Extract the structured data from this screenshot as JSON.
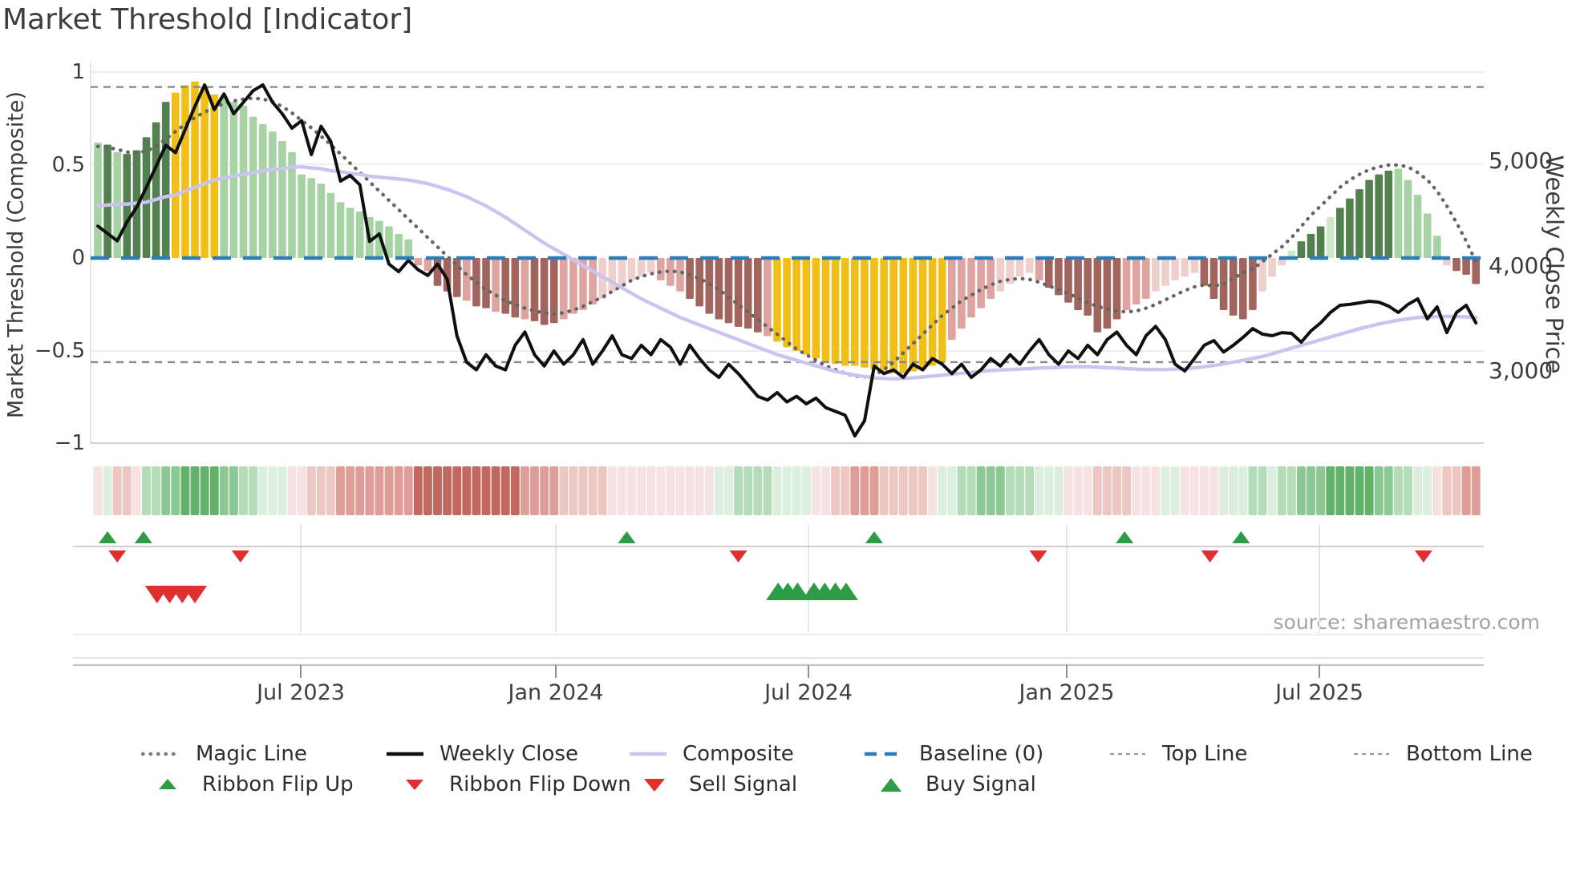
{
  "title": "Market Threshold [Indicator]",
  "source": "source: sharemaestro.com",
  "axes": {
    "left_label": "Market Threshold (Composite)",
    "right_label": "Weekly Close Price",
    "left_ticks": [
      "1",
      "0.5",
      "0",
      "−0.5",
      "−1"
    ],
    "right_ticks": [
      "5,000",
      "4,000",
      "3,000"
    ],
    "x_ticks": [
      "Jul 2023",
      "Jan 2024",
      "Jul 2024",
      "Jan 2025",
      "Jul 2025"
    ]
  },
  "legend": {
    "row1": [
      {
        "label": "Magic Line",
        "swatch": "dotted-gray-line"
      },
      {
        "label": "Weekly Close",
        "swatch": "solid-black-line"
      },
      {
        "label": "Composite",
        "swatch": "solid-lavender-line"
      },
      {
        "label": "Baseline (0)",
        "swatch": "dashed-blue-line"
      },
      {
        "label": "Top Line",
        "swatch": "fine-dashed-gray-line"
      },
      {
        "label": "Bottom Line",
        "swatch": "fine-dashed-gray-line"
      }
    ],
    "row2": [
      {
        "label": "Ribbon Flip Up",
        "swatch": "triangle-up-green"
      },
      {
        "label": "Ribbon Flip Down",
        "swatch": "triangle-down-red"
      },
      {
        "label": "Sell Signal",
        "swatch": "triangle-down-red-large"
      },
      {
        "label": "Buy Signal",
        "swatch": "triangle-up-green-large"
      }
    ]
  },
  "colors": {
    "bar_palette": {
      "dg": "#53804f",
      "lg": "#a7d2a3",
      "pg": "#cfe7cb",
      "y": "#f2bf18",
      "lp": "#eecfcb",
      "pk": "#dfa49f",
      "dr": "#a2655e"
    },
    "ribbon_palette": {
      "g1": "#dceedd",
      "g2": "#b5dcb8",
      "g3": "#8cc893",
      "g4": "#62b269",
      "r1": "#f6e3e1",
      "r2": "#eec7c3",
      "r3": "#de9e97",
      "r4": "#c2685e"
    },
    "weekly_close": "#0f0f0f",
    "composite": "#cac4ef",
    "magic": "#646464",
    "baseline": "#2c7cba",
    "top_bottom_lines": "#8a8a8a",
    "signal_green": "#2e9c47",
    "signal_red": "#e02f2f",
    "grid": "#e9ecf2"
  },
  "chart_data": {
    "type": "bar",
    "subtype": "combo: weekly composite bars + overlay lines + signal ribbon",
    "title": "Market Threshold [Indicator]",
    "xlabel": "",
    "ylabel_left": "Market Threshold (Composite)",
    "ylabel_right": "Weekly Close Price",
    "left_ylim": [
      -1,
      1
    ],
    "left_tick_values": [
      1,
      0.5,
      0,
      -0.5,
      -1
    ],
    "right_price_ticks": [
      5000,
      4000,
      3000
    ],
    "x_tick_labels": [
      "Jul 2023",
      "Jan 2024",
      "Jul 2024",
      "Jan 2025",
      "Jul 2025"
    ],
    "grid": "horizontal-light",
    "legend_position": "bottom",
    "weeks": 143,
    "baseline_value": 0,
    "top_line_value": 0.92,
    "bottom_line_value": -0.56,
    "bars": {
      "name": "Composite threshold bars",
      "values": [
        0.62,
        0.61,
        0.57,
        0.56,
        0.58,
        0.65,
        0.73,
        0.84,
        0.89,
        0.93,
        0.95,
        0.92,
        0.88,
        0.87,
        0.84,
        0.82,
        0.76,
        0.72,
        0.68,
        0.63,
        0.57,
        0.45,
        0.43,
        0.4,
        0.35,
        0.3,
        0.27,
        0.25,
        0.22,
        0.2,
        0.17,
        0.13,
        0.1,
        -0.04,
        -0.07,
        -0.15,
        -0.18,
        -0.21,
        -0.23,
        -0.26,
        -0.27,
        -0.29,
        -0.3,
        -0.32,
        -0.33,
        -0.34,
        -0.36,
        -0.35,
        -0.33,
        -0.3,
        -0.28,
        -0.25,
        -0.22,
        -0.18,
        -0.15,
        -0.12,
        -0.1,
        -0.08,
        -0.12,
        -0.15,
        -0.18,
        -0.22,
        -0.26,
        -0.3,
        -0.33,
        -0.35,
        -0.37,
        -0.38,
        -0.4,
        -0.42,
        -0.45,
        -0.48,
        -0.5,
        -0.52,
        -0.54,
        -0.56,
        -0.57,
        -0.58,
        -0.58,
        -0.59,
        -0.6,
        -0.61,
        -0.62,
        -0.62,
        -0.61,
        -0.6,
        -0.58,
        -0.56,
        -0.44,
        -0.38,
        -0.32,
        -0.27,
        -0.22,
        -0.18,
        -0.14,
        -0.1,
        -0.08,
        -0.12,
        -0.16,
        -0.2,
        -0.24,
        -0.28,
        -0.31,
        -0.4,
        -0.38,
        -0.33,
        -0.28,
        -0.25,
        -0.22,
        -0.18,
        -0.15,
        -0.12,
        -0.1,
        -0.08,
        -0.15,
        -0.22,
        -0.28,
        -0.31,
        -0.33,
        -0.28,
        -0.18,
        -0.1,
        -0.04,
        0.04,
        0.09,
        0.13,
        0.17,
        0.22,
        0.27,
        0.32,
        0.37,
        0.42,
        0.45,
        0.47,
        0.48,
        0.42,
        0.34,
        0.24,
        0.12,
        -0.04,
        -0.07,
        -0.09,
        -0.14
      ],
      "color_keys": [
        "lg",
        "dg",
        "lg",
        "dg",
        "dg",
        "dg",
        "dg",
        "dg",
        "y",
        "y",
        "y",
        "y",
        "y",
        "lg",
        "lg",
        "lg",
        "lg",
        "lg",
        "lg",
        "lg",
        "lg",
        "lg",
        "lg",
        "lg",
        "lg",
        "lg",
        "lg",
        "lg",
        "lg",
        "lg",
        "lg",
        "lg",
        "lg",
        "pk",
        "pk",
        "dr",
        "dr",
        "dr",
        "pk",
        "dr",
        "dr",
        "pk",
        "dr",
        "dr",
        "pk",
        "dr",
        "dr",
        "dr",
        "pk",
        "pk",
        "pk",
        "pk",
        "lp",
        "lp",
        "lp",
        "lp",
        "lp",
        "lp",
        "pk",
        "pk",
        "pk",
        "dr",
        "dr",
        "dr",
        "dr",
        "dr",
        "dr",
        "dr",
        "dr",
        "pk",
        "y",
        "y",
        "y",
        "y",
        "y",
        "y",
        "y",
        "y",
        "y",
        "y",
        "y",
        "y",
        "y",
        "y",
        "y",
        "y",
        "y",
        "y",
        "pk",
        "pk",
        "pk",
        "pk",
        "pk",
        "lp",
        "lp",
        "lp",
        "lp",
        "pk",
        "dr",
        "dr",
        "dr",
        "dr",
        "dr",
        "dr",
        "dr",
        "dr",
        "pk",
        "pk",
        "pk",
        "lp",
        "lp",
        "lp",
        "lp",
        "lp",
        "dr",
        "dr",
        "dr",
        "dr",
        "dr",
        "dr",
        "lp",
        "lp",
        "lp",
        "pg",
        "dg",
        "dg",
        "dg",
        "pg",
        "dg",
        "dg",
        "dg",
        "dg",
        "dg",
        "dg",
        "lg",
        "lg",
        "lg",
        "lg",
        "lg",
        "lp",
        "dr",
        "dr",
        "dr"
      ]
    },
    "lines": {
      "weekly_close_price": [
        4380,
        4310,
        4240,
        4420,
        4560,
        4750,
        4950,
        5150,
        5080,
        5300,
        5520,
        5726,
        5490,
        5640,
        5450,
        5560,
        5670,
        5726,
        5560,
        5450,
        5313,
        5385,
        5061,
        5331,
        5187,
        4809,
        4863,
        4773,
        4234,
        4306,
        4018,
        3946,
        4054,
        3964,
        3910,
        4018,
        3874,
        3335,
        3083,
        3011,
        3155,
        3047,
        3011,
        3245,
        3371,
        3155,
        3047,
        3191,
        3065,
        3155,
        3299,
        3065,
        3191,
        3335,
        3155,
        3119,
        3245,
        3155,
        3299,
        3227,
        3065,
        3245,
        3119,
        3011,
        2939,
        3065,
        2975,
        2867,
        2759,
        2723,
        2795,
        2705,
        2759,
        2687,
        2741,
        2651,
        2615,
        2579,
        2382,
        2525,
        3047,
        2975,
        3011,
        2939,
        3065,
        3011,
        3119,
        3065,
        2975,
        3065,
        2939,
        3011,
        3119,
        3047,
        3155,
        3065,
        3191,
        3299,
        3155,
        3065,
        3191,
        3119,
        3245,
        3155,
        3299,
        3371,
        3245,
        3155,
        3335,
        3425,
        3299,
        3065,
        3000,
        3120,
        3245,
        3290,
        3180,
        3245,
        3320,
        3404,
        3351,
        3336,
        3366,
        3359,
        3275,
        3382,
        3458,
        3557,
        3626,
        3634,
        3649,
        3664,
        3656,
        3618,
        3557,
        3634,
        3687,
        3496,
        3611,
        3366,
        3557,
        3626,
        3458
      ],
      "composite": [
        0.28,
        0.285,
        0.29,
        0.29,
        0.295,
        0.3,
        0.315,
        0.33,
        0.34,
        0.36,
        0.38,
        0.4,
        0.42,
        0.43,
        0.44,
        0.45,
        0.46,
        0.47,
        0.475,
        0.48,
        0.49,
        0.49,
        0.485,
        0.48,
        0.47,
        0.465,
        0.455,
        0.45,
        0.44,
        0.435,
        0.43,
        0.425,
        0.42,
        0.41,
        0.4,
        0.385,
        0.37,
        0.35,
        0.33,
        0.305,
        0.28,
        0.25,
        0.22,
        0.185,
        0.15,
        0.115,
        0.08,
        0.05,
        0.02,
        -0.01,
        -0.04,
        -0.07,
        -0.1,
        -0.13,
        -0.16,
        -0.19,
        -0.22,
        -0.245,
        -0.27,
        -0.295,
        -0.32,
        -0.34,
        -0.36,
        -0.38,
        -0.4,
        -0.42,
        -0.44,
        -0.46,
        -0.48,
        -0.5,
        -0.52,
        -0.535,
        -0.55,
        -0.565,
        -0.58,
        -0.595,
        -0.61,
        -0.62,
        -0.63,
        -0.638,
        -0.645,
        -0.648,
        -0.65,
        -0.648,
        -0.645,
        -0.64,
        -0.635,
        -0.63,
        -0.625,
        -0.62,
        -0.615,
        -0.61,
        -0.605,
        -0.602,
        -0.6,
        -0.598,
        -0.595,
        -0.592,
        -0.59,
        -0.588,
        -0.585,
        -0.585,
        -0.585,
        -0.587,
        -0.59,
        -0.592,
        -0.595,
        -0.598,
        -0.6,
        -0.6,
        -0.6,
        -0.598,
        -0.595,
        -0.59,
        -0.585,
        -0.578,
        -0.57,
        -0.56,
        -0.55,
        -0.54,
        -0.53,
        -0.515,
        -0.5,
        -0.485,
        -0.47,
        -0.455,
        -0.44,
        -0.425,
        -0.41,
        -0.395,
        -0.38,
        -0.368,
        -0.355,
        -0.345,
        -0.335,
        -0.327,
        -0.32,
        -0.317,
        -0.315,
        -0.314,
        -0.315,
        -0.317,
        -0.32
      ],
      "magic": [
        0.6,
        0.595,
        0.585,
        0.57,
        0.565,
        0.575,
        0.6,
        0.64,
        0.68,
        0.72,
        0.755,
        0.785,
        0.81,
        0.83,
        0.845,
        0.855,
        0.86,
        0.855,
        0.84,
        0.815,
        0.78,
        0.74,
        0.7,
        0.655,
        0.61,
        0.56,
        0.51,
        0.46,
        0.41,
        0.36,
        0.31,
        0.26,
        0.21,
        0.16,
        0.11,
        0.06,
        0.01,
        -0.04,
        -0.09,
        -0.13,
        -0.17,
        -0.2,
        -0.23,
        -0.25,
        -0.27,
        -0.285,
        -0.295,
        -0.3,
        -0.295,
        -0.28,
        -0.26,
        -0.235,
        -0.21,
        -0.18,
        -0.15,
        -0.12,
        -0.1,
        -0.085,
        -0.075,
        -0.07,
        -0.075,
        -0.09,
        -0.11,
        -0.14,
        -0.17,
        -0.21,
        -0.25,
        -0.29,
        -0.33,
        -0.37,
        -0.41,
        -0.45,
        -0.49,
        -0.52,
        -0.55,
        -0.58,
        -0.6,
        -0.62,
        -0.635,
        -0.64,
        -0.63,
        -0.6,
        -0.56,
        -0.51,
        -0.46,
        -0.41,
        -0.36,
        -0.31,
        -0.27,
        -0.23,
        -0.2,
        -0.17,
        -0.145,
        -0.125,
        -0.115,
        -0.11,
        -0.115,
        -0.13,
        -0.15,
        -0.17,
        -0.19,
        -0.215,
        -0.24,
        -0.26,
        -0.275,
        -0.285,
        -0.29,
        -0.285,
        -0.27,
        -0.25,
        -0.225,
        -0.2,
        -0.175,
        -0.155,
        -0.145,
        -0.15,
        -0.14,
        -0.11,
        -0.08,
        -0.06,
        -0.02,
        0.02,
        0.06,
        0.11,
        0.17,
        0.23,
        0.28,
        0.33,
        0.38,
        0.42,
        0.45,
        0.475,
        0.49,
        0.5,
        0.5,
        0.49,
        0.46,
        0.42,
        0.36,
        0.28,
        0.19,
        0.09,
        -0.02
      ]
    },
    "ribbon_color_keys": [
      "r1",
      "g1",
      "r2",
      "r2",
      "r1",
      "g2",
      "g2",
      "g3",
      "g3",
      "g4",
      "g4",
      "g4",
      "g4",
      "g3",
      "g3",
      "g2",
      "g2",
      "g1",
      "g1",
      "g1",
      "r1",
      "r1",
      "r2",
      "r2",
      "r2",
      "r3",
      "r3",
      "r3",
      "r3",
      "r3",
      "r3",
      "r3",
      "r3",
      "r4",
      "r4",
      "r4",
      "r4",
      "r4",
      "r4",
      "r4",
      "r4",
      "r4",
      "r4",
      "r4",
      "r3",
      "r3",
      "r3",
      "r3",
      "r2",
      "r2",
      "r2",
      "r2",
      "r2",
      "r1",
      "r1",
      "r1",
      "r1",
      "r1",
      "r1",
      "r1",
      "r1",
      "r1",
      "r1",
      "r1",
      "g1",
      "g1",
      "g2",
      "g2",
      "g2",
      "g2",
      "g1",
      "g1",
      "g1",
      "g1",
      "r1",
      "r1",
      "r2",
      "r2",
      "r3",
      "r3",
      "r3",
      "r2",
      "r2",
      "r2",
      "r2",
      "r2",
      "r1",
      "g1",
      "g1",
      "g2",
      "g2",
      "g3",
      "g3",
      "g3",
      "g2",
      "g2",
      "g2",
      "g1",
      "g1",
      "g1",
      "r1",
      "r1",
      "r1",
      "r2",
      "r2",
      "r2",
      "r2",
      "r1",
      "r1",
      "r1",
      "g1",
      "g1",
      "r1",
      "r1",
      "r1",
      "r1",
      "g1",
      "g1",
      "g1",
      "g2",
      "g2",
      "g1",
      "g2",
      "g2",
      "g3",
      "g3",
      "g3",
      "g4",
      "g4",
      "g4",
      "g4",
      "g4",
      "g3",
      "g3",
      "g2",
      "g2",
      "g1",
      "g1",
      "r1",
      "r2",
      "r2",
      "r3",
      "r3"
    ],
    "signals": {
      "ribbon_flip_up_weeks": [
        1,
        4.7,
        54.5,
        80,
        105.8,
        117.8
      ],
      "ribbon_flip_down_weeks": [
        2,
        14.7,
        66,
        96.9,
        114.6,
        136.6
      ],
      "sell_signal_weeks": [
        6.1,
        7.4,
        8.7,
        10.0
      ],
      "buy_signal_weeks": [
        70.1,
        71.1,
        72.1,
        73.8,
        74.9,
        76.0,
        77.1
      ]
    }
  }
}
